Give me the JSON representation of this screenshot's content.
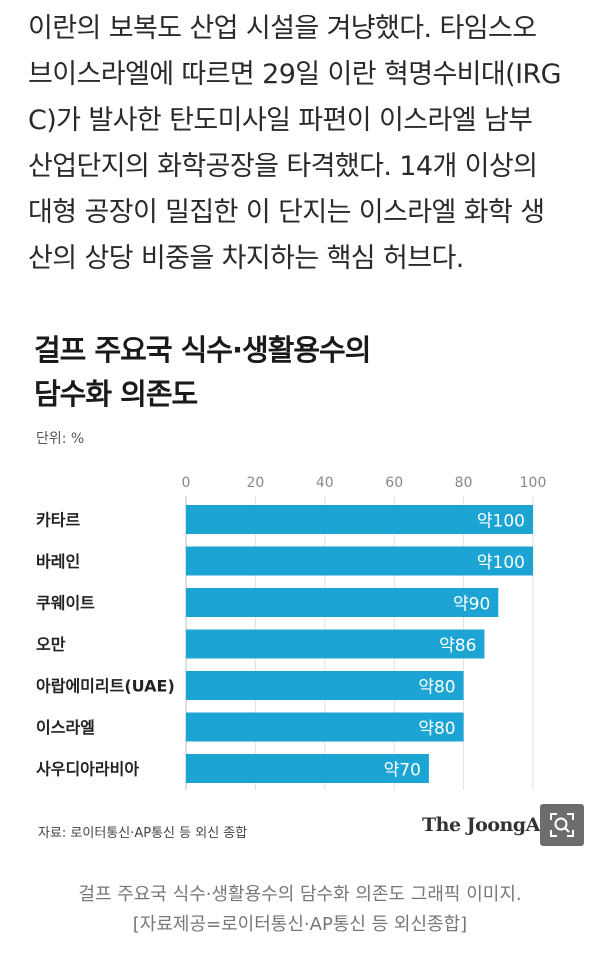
{
  "article": {
    "lines": [
      "이란의 보복도 산업 시설을 겨냥했다. 타임스오",
      "브이스라엘에 따르면 29일 이란 혁명수비대(IRG",
      "C)가 발사한 탄도미사일 파편이 이스라엘 남부",
      "산업단지의 화학공장을 타격했다. 14개 이상의",
      "대형 공장이 밀집한 이 단지는 이스라엘 화학 생",
      "산의 상당 비중을 차지하는 핵심 허브다."
    ]
  },
  "figure": {
    "title_lines": [
      "걸프 주요국 식수·생활용수의",
      "담수화 의존도"
    ],
    "unit": "단위: %",
    "source": "자료: 로이터통신·AP통신 등 외신 종합",
    "logo": "The JoongAng",
    "zoom_icon": "magnifier-icon"
  },
  "chart_data": {
    "type": "bar",
    "orientation": "horizontal",
    "title": "걸프 주요국 식수·생활용수의 담수화 의존도",
    "unit": "단위: %",
    "categories": [
      "카타르",
      "바레인",
      "쿠웨이트",
      "오만",
      "아랍에미리트(UAE)",
      "이스라엘",
      "사우디아라비아"
    ],
    "values": [
      100,
      100,
      90,
      86,
      80,
      80,
      70
    ],
    "data_labels": [
      "약100",
      "약100",
      "약90",
      "약86",
      "약80",
      "약80",
      "약70"
    ],
    "xlim": [
      0,
      100
    ],
    "xticks": [
      0,
      20,
      40,
      60,
      80,
      100
    ],
    "grid": true,
    "bar_color": "#1ba4d4"
  },
  "caption": {
    "lines": [
      "걸프 주요국 식수·생활용수의 담수화 의존도 그래픽 이미지.",
      "[자료제공=로이터통신·AP통신 등 외신종합]"
    ]
  }
}
